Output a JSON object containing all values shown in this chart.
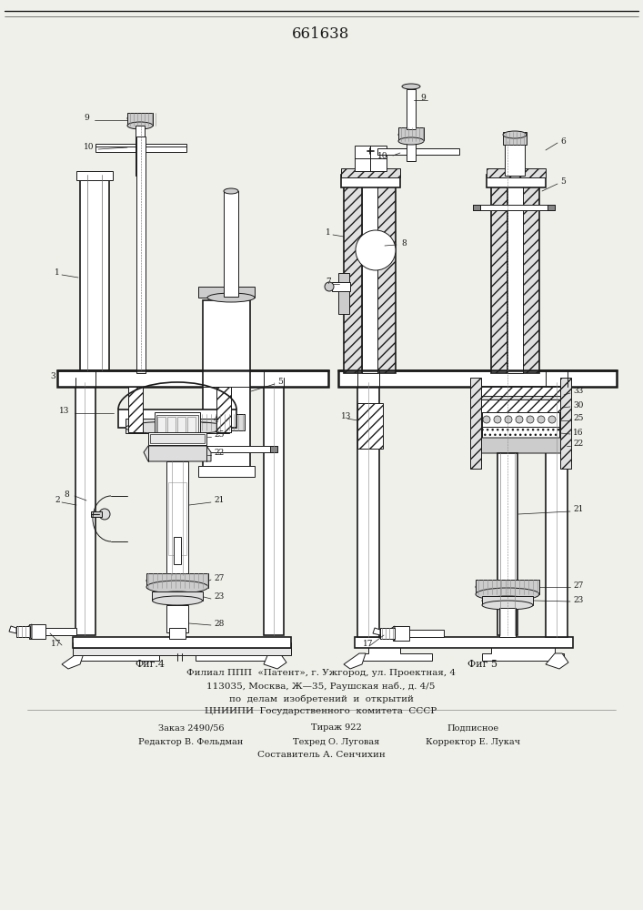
{
  "title": "661638",
  "bg_color": "#f0f0eb",
  "lc": "#1a1a1a",
  "lw": 0.7,
  "lw2": 1.2,
  "lw3": 1.8,
  "fs": 6.5,
  "fig4_label": "Фиг.4",
  "fig5_label": "Фиг 5",
  "footer": [
    [
      "Составитель А. Сенчихин",
      353,
      830,
      7.5,
      "center"
    ],
    [
      "Редактор В. Фельдман",
      210,
      815,
      7,
      "center"
    ],
    [
      "Техред О. Луговая",
      370,
      815,
      7,
      "center"
    ],
    [
      "Корректор Е. Лукач",
      520,
      815,
      7,
      "center"
    ],
    [
      "Заказ 2490/56",
      210,
      800,
      7,
      "center"
    ],
    [
      "Тираж 922",
      370,
      800,
      7,
      "center"
    ],
    [
      "Подписное",
      520,
      800,
      7,
      "center"
    ],
    [
      "ЦНИИПИ  Государственного  комитета  СССР",
      353,
      782,
      7.5,
      "center"
    ],
    [
      "по  делам  изобретений  и  открытий",
      353,
      768,
      7.5,
      "center"
    ],
    [
      "113035, Москва, Ж—35, Раушская наб., д. 4/5",
      353,
      754,
      7.5,
      "center"
    ],
    [
      "Филиал ППП  «Патент», г. Ужгород, ул. Проектная, 4",
      353,
      740,
      7.5,
      "center"
    ]
  ]
}
